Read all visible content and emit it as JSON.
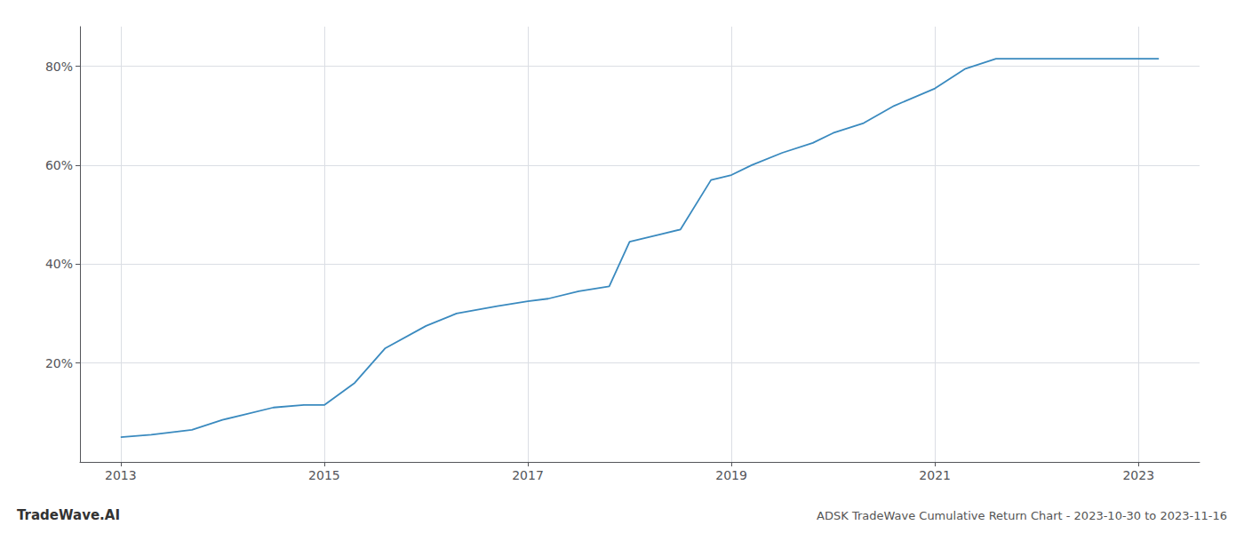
{
  "chart_data": {
    "type": "line",
    "title": "ADSK TradeWave Cumulative Return Chart - 2023-10-30 to 2023-11-16",
    "annotations": [
      "TradeWave.AI"
    ],
    "color": "#3a8abf",
    "x": [
      2013.0,
      2013.3,
      2013.7,
      2014.0,
      2014.2,
      2014.5,
      2014.8,
      2015.0,
      2015.3,
      2015.6,
      2016.0,
      2016.3,
      2016.7,
      2017.0,
      2017.2,
      2017.5,
      2017.8,
      2018.0,
      2018.3,
      2018.5,
      2018.8,
      2019.0,
      2019.2,
      2019.5,
      2019.8,
      2020.0,
      2020.3,
      2020.6,
      2021.0,
      2021.3,
      2021.6,
      2022.0,
      2022.3,
      2022.6,
      2023.0,
      2023.2
    ],
    "values": [
      5.0,
      5.5,
      6.5,
      8.5,
      9.5,
      11.0,
      11.5,
      11.5,
      16.0,
      23.0,
      27.5,
      30.0,
      31.5,
      32.5,
      33.0,
      34.5,
      35.5,
      44.5,
      46.0,
      47.0,
      57.0,
      58.0,
      60.0,
      62.5,
      64.5,
      66.5,
      68.5,
      72.0,
      75.5,
      79.5,
      81.5,
      81.5,
      81.5,
      81.5,
      81.5,
      81.5
    ],
    "xlim": [
      2012.6,
      2023.6
    ],
    "xticks": [
      2013,
      2015,
      2017,
      2019,
      2021,
      2023
    ],
    "ylim": [
      0,
      88
    ],
    "yticks": [
      {
        "value": 20,
        "label": "20%"
      },
      {
        "value": 40,
        "label": "40%"
      },
      {
        "value": 60,
        "label": "60%"
      },
      {
        "value": 80,
        "label": "80%"
      }
    ],
    "grid": true
  }
}
